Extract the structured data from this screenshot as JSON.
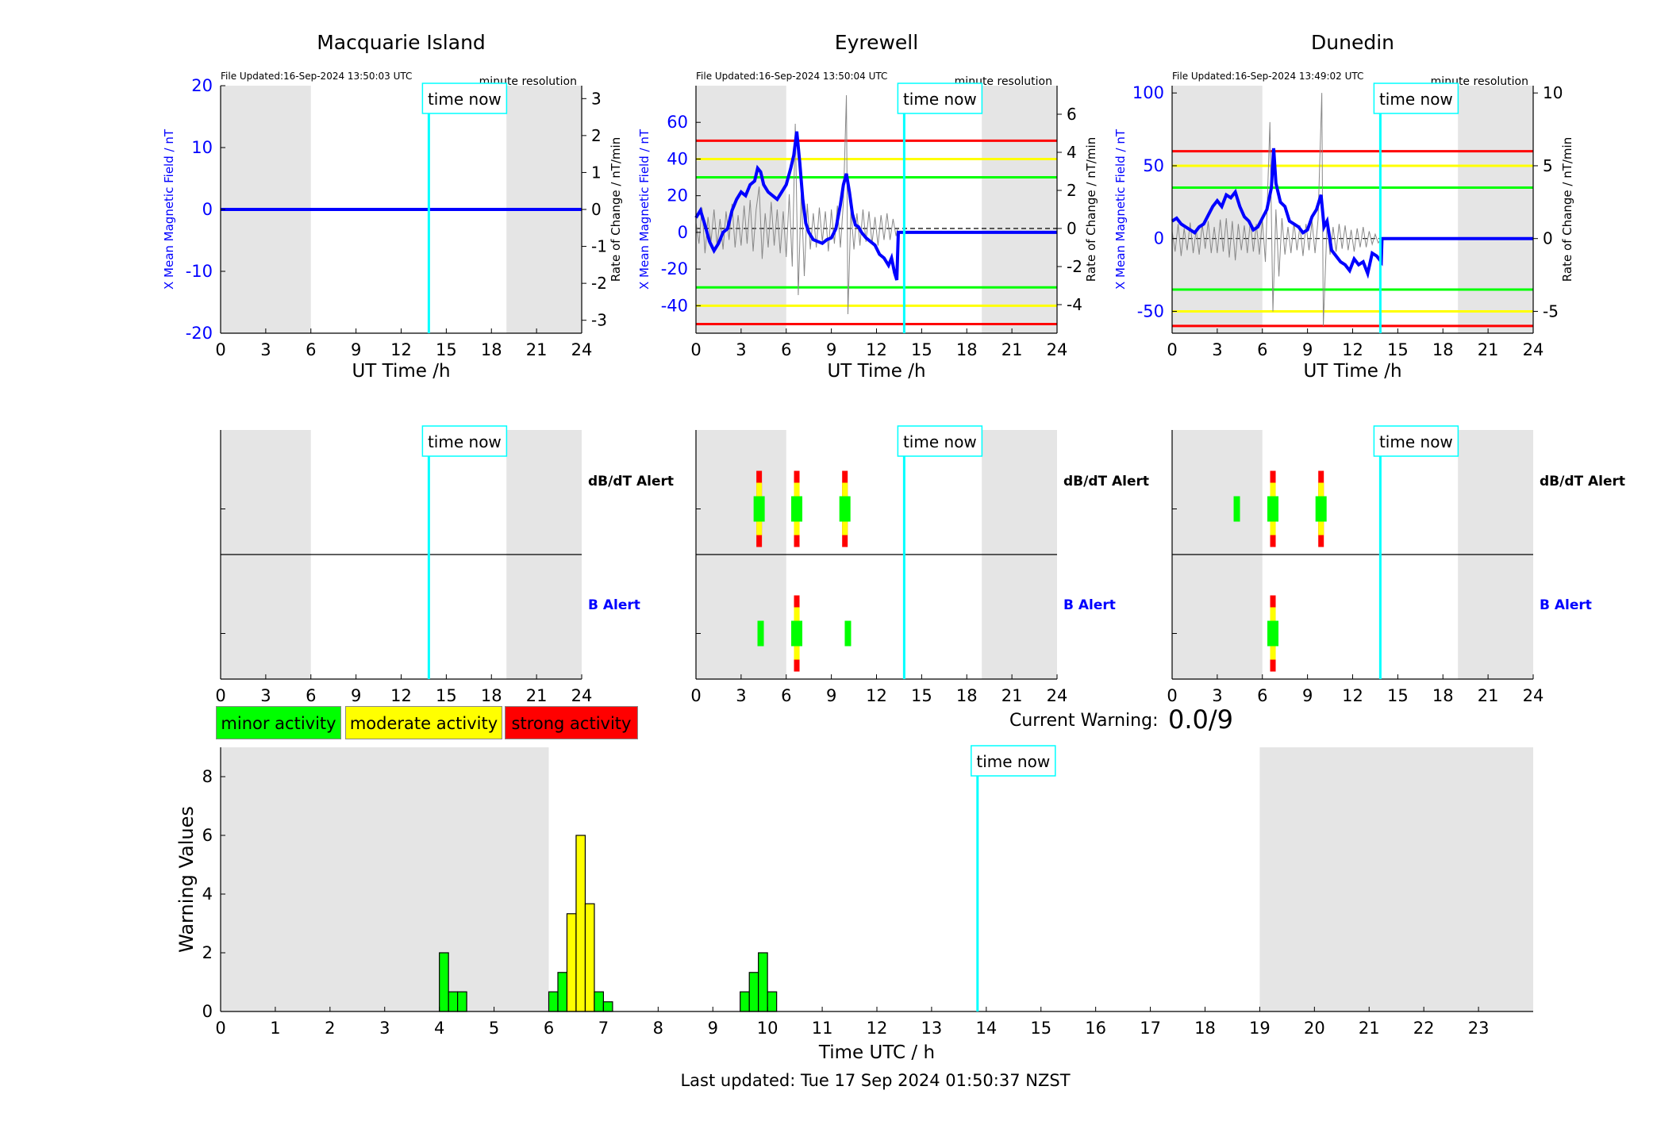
{
  "colors": {
    "shade": "#e5e5e5",
    "blue": "#0000ff",
    "cyan": "#00ffff",
    "red": "#ff0000",
    "yellow": "#ffff00",
    "green": "#00ff00",
    "trace": "#888888"
  },
  "time_now_label": "time now",
  "time_now_h": 13.84,
  "shade_ranges_h": [
    [
      0,
      6
    ],
    [
      19,
      24
    ]
  ],
  "stations": [
    {
      "name": "Macquarie Island",
      "file_updated": "File Updated:16-Sep-2024 13:50:03 UTC",
      "resolution": "minute resolution",
      "ylabel_left": "X Mean Magnetic Field / nT",
      "ylabel_right": "Rate of Change / nT/min",
      "xlabel": "UT Time /h",
      "ylim_left": [
        -20,
        20
      ],
      "yticks_left": [
        -20,
        -10,
        0,
        10,
        20
      ],
      "ylim_right": [
        -3.35,
        3.35
      ],
      "yticks_right": [
        -3,
        -2,
        -1,
        0,
        1,
        2,
        3
      ],
      "thresholds": [],
      "x_series": [
        [
          0,
          0
        ],
        [
          24,
          0
        ]
      ],
      "rate_series": [
        [
          0,
          0
        ],
        [
          24,
          0
        ]
      ],
      "dbdt_alerts": [],
      "b_alerts": []
    },
    {
      "name": "Eyrewell",
      "file_updated": "File Updated:16-Sep-2024 13:50:04 UTC",
      "resolution": "minute resolution",
      "ylabel_left": "X Mean Magnetic Field / nT",
      "ylabel_right": "Rate of Change / nT/min",
      "xlabel": "UT Time /h",
      "ylim_left": [
        -55,
        80
      ],
      "yticks_left": [
        -40,
        -20,
        0,
        20,
        40,
        60
      ],
      "ylim_right": [
        -5.5,
        7.5
      ],
      "yticks_right": [
        -4,
        -2,
        0,
        2,
        4,
        6
      ],
      "thresholds": [
        [
          50,
          "red"
        ],
        [
          40,
          "yellow"
        ],
        [
          30,
          "green"
        ],
        [
          -30,
          "green"
        ],
        [
          -40,
          "yellow"
        ],
        [
          -50,
          "red"
        ]
      ],
      "x_series": [
        [
          0,
          8
        ],
        [
          0.3,
          12
        ],
        [
          0.6,
          4
        ],
        [
          0.9,
          -5
        ],
        [
          1.2,
          -10
        ],
        [
          1.5,
          -6
        ],
        [
          1.8,
          0
        ],
        [
          2.1,
          2
        ],
        [
          2.4,
          12
        ],
        [
          2.7,
          18
        ],
        [
          3.0,
          22
        ],
        [
          3.3,
          20
        ],
        [
          3.6,
          26
        ],
        [
          3.9,
          28
        ],
        [
          4.1,
          35
        ],
        [
          4.3,
          33
        ],
        [
          4.5,
          26
        ],
        [
          4.8,
          22
        ],
        [
          5.1,
          20
        ],
        [
          5.4,
          18
        ],
        [
          5.7,
          22
        ],
        [
          6.0,
          26
        ],
        [
          6.3,
          35
        ],
        [
          6.5,
          42
        ],
        [
          6.7,
          55
        ],
        [
          6.9,
          38
        ],
        [
          7.1,
          18
        ],
        [
          7.3,
          5
        ],
        [
          7.5,
          0
        ],
        [
          7.8,
          -4
        ],
        [
          8.1,
          -5
        ],
        [
          8.4,
          -6
        ],
        [
          8.7,
          -4
        ],
        [
          9.0,
          -3
        ],
        [
          9.3,
          2
        ],
        [
          9.6,
          15
        ],
        [
          9.8,
          26
        ],
        [
          10.0,
          32
        ],
        [
          10.2,
          22
        ],
        [
          10.4,
          10
        ],
        [
          10.6,
          4
        ],
        [
          10.8,
          3
        ],
        [
          11.0,
          0
        ],
        [
          11.3,
          -3
        ],
        [
          11.6,
          -5
        ],
        [
          11.9,
          -7
        ],
        [
          12.2,
          -12
        ],
        [
          12.5,
          -14
        ],
        [
          12.8,
          -18
        ],
        [
          13.0,
          -14
        ],
        [
          13.2,
          -22
        ],
        [
          13.35,
          -26
        ],
        [
          13.45,
          0
        ],
        [
          24,
          0
        ]
      ],
      "rate_series": [
        [
          0,
          0.3
        ],
        [
          0.2,
          -0.8
        ],
        [
          0.4,
          1.1
        ],
        [
          0.6,
          -1.3
        ],
        [
          0.8,
          0.6
        ],
        [
          1.0,
          -0.7
        ],
        [
          1.2,
          1.0
        ],
        [
          1.4,
          -0.9
        ],
        [
          1.6,
          0.5
        ],
        [
          1.8,
          -1.1
        ],
        [
          2.0,
          0.9
        ],
        [
          2.2,
          -0.6
        ],
        [
          2.4,
          1.3
        ],
        [
          2.6,
          -1.0
        ],
        [
          2.8,
          0.7
        ],
        [
          3.0,
          -0.9
        ],
        [
          3.2,
          1.2
        ],
        [
          3.4,
          -0.8
        ],
        [
          3.6,
          1.5
        ],
        [
          3.8,
          -1.2
        ],
        [
          4.0,
          1.0
        ],
        [
          4.2,
          2.2
        ],
        [
          4.4,
          -1.6
        ],
        [
          4.6,
          0.8
        ],
        [
          4.8,
          -1.0
        ],
        [
          5.0,
          1.4
        ],
        [
          5.2,
          -0.9
        ],
        [
          5.4,
          1.0
        ],
        [
          5.6,
          -1.3
        ],
        [
          5.8,
          0.9
        ],
        [
          6.0,
          -1.5
        ],
        [
          6.2,
          1.8
        ],
        [
          6.4,
          -2.0
        ],
        [
          6.6,
          5.5
        ],
        [
          6.8,
          -3.5
        ],
        [
          7.0,
          2.0
        ],
        [
          7.2,
          -2.5
        ],
        [
          7.4,
          1.3
        ],
        [
          7.6,
          -1.1
        ],
        [
          7.8,
          0.8
        ],
        [
          8.0,
          -1.0
        ],
        [
          8.2,
          1.1
        ],
        [
          8.4,
          -0.7
        ],
        [
          8.6,
          0.9
        ],
        [
          8.8,
          -1.2
        ],
        [
          9.0,
          1.0
        ],
        [
          9.2,
          -0.8
        ],
        [
          9.4,
          1.2
        ],
        [
          9.6,
          -1.0
        ],
        [
          9.8,
          1.4
        ],
        [
          10.0,
          7.0
        ],
        [
          10.1,
          -4.5
        ],
        [
          10.3,
          1.0
        ],
        [
          10.5,
          -1.1
        ],
        [
          10.7,
          0.8
        ],
        [
          10.9,
          -0.9
        ],
        [
          11.1,
          1.0
        ],
        [
          11.3,
          -0.7
        ],
        [
          11.5,
          0.9
        ],
        [
          11.7,
          -0.8
        ],
        [
          11.9,
          0.6
        ],
        [
          12.1,
          -0.9
        ],
        [
          12.3,
          0.7
        ],
        [
          12.5,
          -0.6
        ],
        [
          12.7,
          0.8
        ],
        [
          12.9,
          -0.6
        ],
        [
          13.1,
          0.5
        ],
        [
          13.3,
          -0.4
        ],
        [
          13.4,
          0
        ]
      ],
      "dbdt_alerts": [
        [
          4.2,
          "strong"
        ],
        [
          6.7,
          "strong"
        ],
        [
          9.9,
          "strong"
        ]
      ],
      "b_alerts": [
        [
          4.3,
          "minor"
        ],
        [
          6.7,
          "strong"
        ],
        [
          10.1,
          "minor"
        ]
      ]
    },
    {
      "name": "Dunedin",
      "file_updated": "File Updated:16-Sep-2024 13:49:02 UTC",
      "resolution": "minute resolution",
      "ylabel_left": "X Mean Magnetic Field / nT",
      "ylabel_right": "Rate of Change / nT/min",
      "xlabel": "UT Time /h",
      "ylim_left": [
        -65,
        105
      ],
      "yticks_left": [
        -50,
        0,
        50,
        100
      ],
      "ylim_right": [
        -6.5,
        10.5
      ],
      "yticks_right": [
        -5,
        0,
        5,
        10
      ],
      "thresholds": [
        [
          60,
          "red"
        ],
        [
          50,
          "yellow"
        ],
        [
          35,
          "green"
        ],
        [
          -35,
          "green"
        ],
        [
          -50,
          "yellow"
        ],
        [
          -60,
          "red"
        ]
      ],
      "x_series": [
        [
          0,
          12
        ],
        [
          0.3,
          14
        ],
        [
          0.6,
          10
        ],
        [
          0.9,
          8
        ],
        [
          1.2,
          6
        ],
        [
          1.5,
          4
        ],
        [
          1.8,
          8
        ],
        [
          2.1,
          10
        ],
        [
          2.4,
          16
        ],
        [
          2.7,
          22
        ],
        [
          3.0,
          26
        ],
        [
          3.3,
          22
        ],
        [
          3.6,
          30
        ],
        [
          3.9,
          28
        ],
        [
          4.2,
          32
        ],
        [
          4.5,
          22
        ],
        [
          4.8,
          15
        ],
        [
          5.1,
          12
        ],
        [
          5.4,
          6
        ],
        [
          5.7,
          8
        ],
        [
          6.0,
          14
        ],
        [
          6.3,
          20
        ],
        [
          6.6,
          35
        ],
        [
          6.75,
          62
        ],
        [
          6.9,
          38
        ],
        [
          7.2,
          25
        ],
        [
          7.5,
          22
        ],
        [
          7.8,
          12
        ],
        [
          8.1,
          10
        ],
        [
          8.4,
          8
        ],
        [
          8.7,
          4
        ],
        [
          9.0,
          6
        ],
        [
          9.3,
          15
        ],
        [
          9.6,
          20
        ],
        [
          9.9,
          30
        ],
        [
          10.1,
          8
        ],
        [
          10.3,
          12
        ],
        [
          10.6,
          -8
        ],
        [
          10.9,
          -12
        ],
        [
          11.2,
          -16
        ],
        [
          11.5,
          -18
        ],
        [
          11.8,
          -22
        ],
        [
          12.1,
          -14
        ],
        [
          12.4,
          -18
        ],
        [
          12.7,
          -16
        ],
        [
          13.0,
          -24
        ],
        [
          13.3,
          -10
        ],
        [
          13.6,
          -12
        ],
        [
          13.9,
          -16
        ],
        [
          13.95,
          0
        ],
        [
          24,
          0
        ]
      ],
      "rate_series": [
        [
          0,
          0.5
        ],
        [
          0.2,
          -0.9
        ],
        [
          0.4,
          1.0
        ],
        [
          0.6,
          -1.2
        ],
        [
          0.8,
          0.7
        ],
        [
          1.0,
          -0.8
        ],
        [
          1.2,
          1.1
        ],
        [
          1.4,
          -1.0
        ],
        [
          1.6,
          0.6
        ],
        [
          1.8,
          -1.1
        ],
        [
          2.0,
          1.0
        ],
        [
          2.2,
          -0.7
        ],
        [
          2.4,
          1.2
        ],
        [
          2.6,
          -1.0
        ],
        [
          2.8,
          0.8
        ],
        [
          3.0,
          -1.0
        ],
        [
          3.2,
          1.3
        ],
        [
          3.4,
          -0.9
        ],
        [
          3.6,
          1.4
        ],
        [
          3.8,
          -1.3
        ],
        [
          4.0,
          1.2
        ],
        [
          4.2,
          -1.5
        ],
        [
          4.4,
          1.0
        ],
        [
          4.6,
          -0.8
        ],
        [
          4.8,
          0.9
        ],
        [
          5.0,
          -1.0
        ],
        [
          5.2,
          1.2
        ],
        [
          5.4,
          -0.9
        ],
        [
          5.6,
          1.0
        ],
        [
          5.8,
          -1.1
        ],
        [
          6.0,
          1.3
        ],
        [
          6.2,
          -1.6
        ],
        [
          6.5,
          8.0
        ],
        [
          6.7,
          -5.0
        ],
        [
          6.9,
          2.0
        ],
        [
          7.1,
          -2.6
        ],
        [
          7.3,
          1.4
        ],
        [
          7.5,
          -1.1
        ],
        [
          7.7,
          0.8
        ],
        [
          7.9,
          -1.0
        ],
        [
          8.1,
          1.1
        ],
        [
          8.3,
          -0.8
        ],
        [
          8.5,
          0.9
        ],
        [
          8.7,
          -1.2
        ],
        [
          8.9,
          1.0
        ],
        [
          9.1,
          -0.8
        ],
        [
          9.3,
          1.2
        ],
        [
          9.5,
          -1.0
        ],
        [
          9.7,
          1.3
        ],
        [
          9.95,
          10.0
        ],
        [
          10.05,
          -6.0
        ],
        [
          10.3,
          1.0
        ],
        [
          10.5,
          -1.1
        ],
        [
          10.7,
          0.8
        ],
        [
          10.9,
          -0.9
        ],
        [
          11.1,
          1.0
        ],
        [
          11.3,
          -0.7
        ],
        [
          11.5,
          0.9
        ],
        [
          11.7,
          -0.8
        ],
        [
          11.9,
          0.6
        ],
        [
          12.1,
          -0.9
        ],
        [
          12.3,
          0.7
        ],
        [
          12.5,
          -0.6
        ],
        [
          12.7,
          0.8
        ],
        [
          12.9,
          -0.6
        ],
        [
          13.1,
          0.5
        ],
        [
          13.3,
          -0.4
        ],
        [
          13.5,
          0.3
        ],
        [
          13.7,
          -0.3
        ],
        [
          13.9,
          0
        ]
      ],
      "dbdt_alerts": [
        [
          4.3,
          "minor"
        ],
        [
          6.7,
          "strong"
        ],
        [
          9.9,
          "strong"
        ]
      ],
      "b_alerts": [
        [
          6.7,
          "strong"
        ]
      ]
    }
  ],
  "alert_rows": {
    "dbdt_label": "dB/dT Alert",
    "b_label": "B Alert"
  },
  "legend": [
    {
      "label": "minor activity",
      "color": "#00ff00"
    },
    {
      "label": "moderate activity",
      "color": "#ffff00"
    },
    {
      "label": "strong activity",
      "color": "#ff0000"
    }
  ],
  "current_warning": {
    "label": "Current Warning:",
    "value": "0.0/9"
  },
  "chart_data": {
    "type": "bar",
    "title": "",
    "xlabel": "Time UTC / h",
    "ylabel": "Warning Values",
    "xlim": [
      0,
      24
    ],
    "ylim": [
      0,
      9
    ],
    "yticks": [
      0,
      2,
      4,
      6,
      8
    ],
    "xticks": [
      0,
      1,
      2,
      3,
      4,
      5,
      6,
      7,
      8,
      9,
      10,
      11,
      12,
      13,
      14,
      15,
      16,
      17,
      18,
      19,
      20,
      21,
      22,
      23
    ],
    "bin_width_h": 0.1667,
    "bars": [
      {
        "x": 4.0,
        "value": 2,
        "level": "minor"
      },
      {
        "x": 4.167,
        "value": 0.67,
        "level": "minor"
      },
      {
        "x": 4.333,
        "value": 0.67,
        "level": "minor"
      },
      {
        "x": 6.0,
        "value": 0.67,
        "level": "minor"
      },
      {
        "x": 6.167,
        "value": 1.33,
        "level": "minor"
      },
      {
        "x": 6.333,
        "value": 3.33,
        "level": "moderate"
      },
      {
        "x": 6.5,
        "value": 6,
        "level": "moderate"
      },
      {
        "x": 6.667,
        "value": 3.67,
        "level": "moderate"
      },
      {
        "x": 6.833,
        "value": 0.67,
        "level": "minor"
      },
      {
        "x": 7.0,
        "value": 0.33,
        "level": "minor"
      },
      {
        "x": 9.5,
        "value": 0.67,
        "level": "minor"
      },
      {
        "x": 9.667,
        "value": 1.33,
        "level": "minor"
      },
      {
        "x": 9.833,
        "value": 2,
        "level": "minor"
      },
      {
        "x": 10.0,
        "value": 0.67,
        "level": "minor"
      }
    ]
  },
  "last_updated": "Last updated: Tue 17 Sep 2024 01:50:37 NZST"
}
